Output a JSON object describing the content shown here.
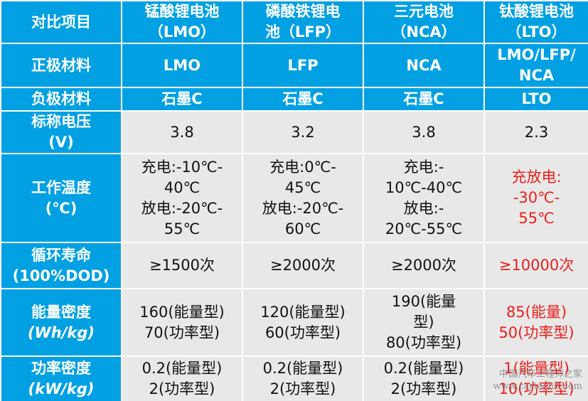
{
  "table": {
    "header": [
      [
        "对比项目"
      ],
      [
        "锰酸锂电池",
        "（LMO）"
      ],
      [
        "磷酸铁锂电",
        "池（LFP）"
      ],
      [
        "三元电池",
        "（NCA）"
      ],
      [
        "钛酸锂电池",
        "（LTO）"
      ]
    ],
    "rows": [
      [
        [
          "正极材料"
        ],
        [
          "LMO"
        ],
        [
          "LFP"
        ],
        [
          "NCA"
        ],
        [
          "LMO/LFP/",
          "NCA"
        ]
      ],
      [
        [
          "负极材料"
        ],
        [
          "石墨C"
        ],
        [
          "石墨C"
        ],
        [
          "石墨C"
        ],
        [
          "LTO"
        ]
      ],
      [
        [
          "标称电压",
          "(V)"
        ],
        [
          3.8
        ],
        [
          3.2
        ],
        [
          3.8
        ],
        [
          2.3
        ]
      ],
      [
        [
          "工作温度",
          "(℃)"
        ],
        [
          "充电:-10℃-",
          "40℃",
          "放电:-20℃-",
          "55℃"
        ],
        [
          "充电:0℃-",
          "45℃",
          "放电:-20℃-",
          "60℃"
        ],
        [
          "充电:-",
          "10℃-40℃",
          "放电:-",
          "20℃-55℃"
        ],
        [
          "充放电:",
          "-30℃-",
          "55℃"
        ]
      ],
      [
        [
          "循环寿命",
          "(100%DOD)"
        ],
        [
          "≥1500次"
        ],
        [
          "≥2000次"
        ],
        [
          "≥2000次"
        ],
        [
          "≥10000次"
        ]
      ],
      [
        [
          "能量密度",
          "(Wh/kg)"
        ],
        [
          "160(能量型)",
          "70(功率型)"
        ],
        [
          "120(能量型)",
          "60(功率型)"
        ],
        [
          "190(能量",
          "型)",
          "80(功率型)"
        ],
        [
          "85(能量)",
          "50(功率型)"
        ]
      ],
      [
        [
          "功率密度",
          "(kW/kg)"
        ],
        [
          "0.2(能量型)",
          "2(功率型)"
        ],
        [
          "0.2(能量型)",
          "2(功率型)"
        ],
        [
          "0.2(能量型)",
          "2(功率型)"
        ],
        [
          "1(能量型)",
          "10(功率型)"
        ]
      ]
    ],
    "highlight_color": "#e8201c"
  },
  "watermark": [
    "中国汽车工程师之家",
    "www.cartech8.com"
  ]
}
